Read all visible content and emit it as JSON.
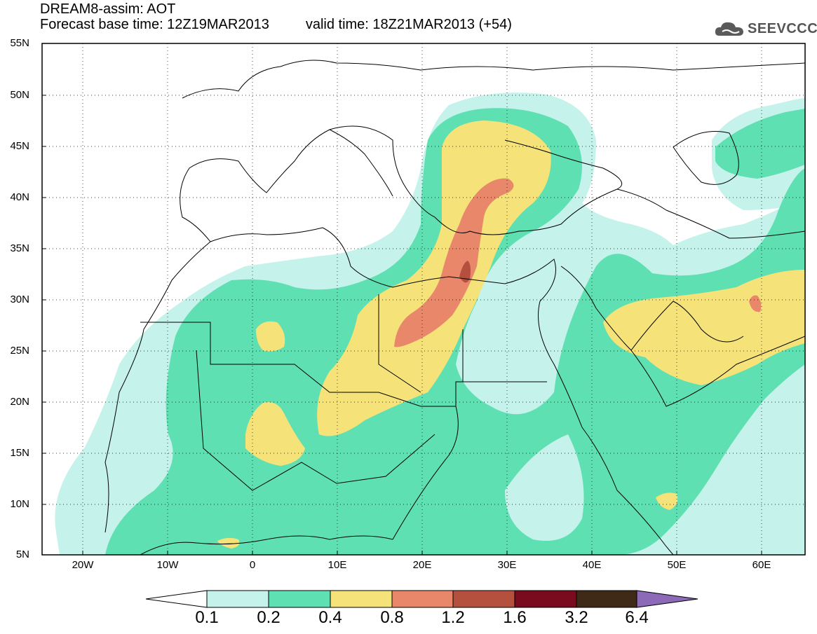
{
  "title": {
    "line1": "DREAM8-assim: AOT",
    "base_time": "Forecast base time: 12Z19MAR2013",
    "valid_time": "valid time: 18Z21MAR2013 (+54)"
  },
  "logo": {
    "text": "SEEVCCC",
    "icon": "cloud-logo-icon"
  },
  "map": {
    "lon_range": [
      -25,
      65
    ],
    "lat_range": [
      5,
      55
    ],
    "grid": "dotted",
    "lat_labels": [
      "55N",
      "50N",
      "45N",
      "40N",
      "35N",
      "30N",
      "25N",
      "20N",
      "15N",
      "10N",
      "5N"
    ],
    "lon_labels": [
      "20W",
      "10W",
      "0",
      "10E",
      "20E",
      "30E",
      "40E",
      "50E",
      "60E"
    ]
  },
  "colorbar": {
    "levels": [
      "0.1",
      "0.2",
      "0.4",
      "0.8",
      "1.2",
      "1.6",
      "3.2",
      "6.4"
    ],
    "colors": [
      "#c6f2ec",
      "#5fe0b2",
      "#f5e37a",
      "#e9876a",
      "#b5503f",
      "#7a0a1e",
      "#3f2a18",
      "#8c6ab8"
    ]
  }
}
